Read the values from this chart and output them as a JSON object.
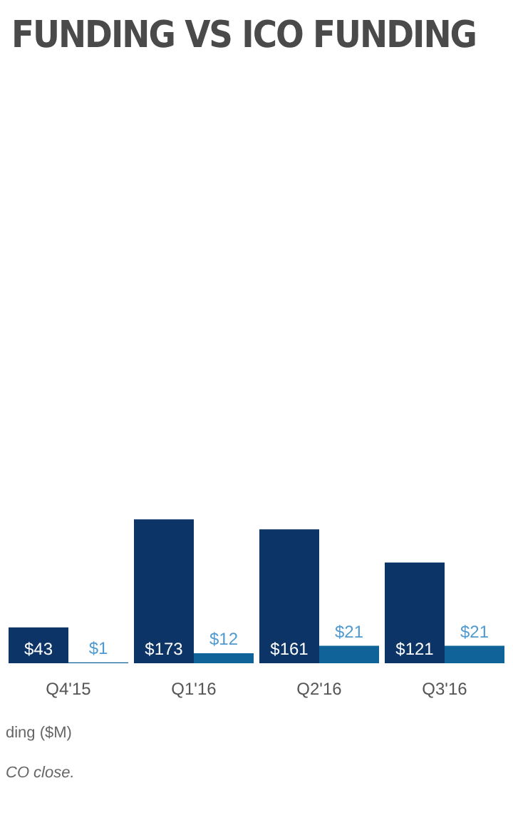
{
  "chart_data": {
    "type": "bar",
    "title": "FUNDING VS ICO FUNDING",
    "categories": [
      "Q4'15",
      "Q1'16",
      "Q2'16",
      "Q3'16"
    ],
    "series": [
      {
        "color": "#0c3466",
        "values": [
          43,
          173,
          161,
          121
        ],
        "value_labels": [
          "$43",
          "$173",
          "$161",
          "$121"
        ]
      },
      {
        "color": "#0f6399",
        "values": [
          1,
          12,
          21,
          21
        ],
        "value_labels": [
          "$1",
          "$12",
          "$21",
          "$21"
        ]
      }
    ],
    "tick_labels": "x",
    "annotations": [
      "ding ($M)",
      "CO close."
    ]
  }
}
